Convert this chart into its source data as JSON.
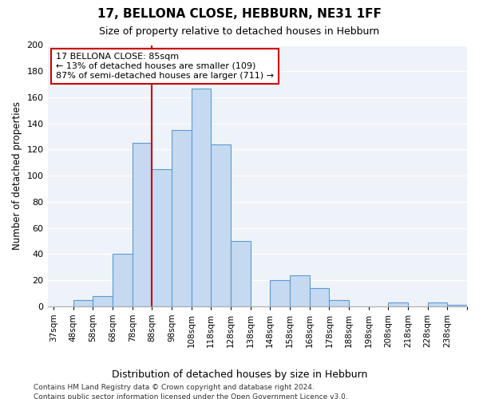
{
  "title": "17, BELLONA CLOSE, HEBBURN, NE31 1FF",
  "subtitle": "Size of property relative to detached houses in Hebburn",
  "xlabel": "Distribution of detached houses by size in Hebburn",
  "ylabel": "Number of detached properties",
  "bin_labels": [
    "37sqm",
    "48sqm",
    "58sqm",
    "68sqm",
    "78sqm",
    "88sqm",
    "98sqm",
    "108sqm",
    "118sqm",
    "128sqm",
    "138sqm",
    "148sqm",
    "158sqm",
    "168sqm",
    "178sqm",
    "188sqm",
    "198sqm",
    "208sqm",
    "218sqm",
    "228sqm",
    "238sqm"
  ],
  "bar_heights": [
    0,
    5,
    8,
    40,
    125,
    105,
    135,
    167,
    124,
    50,
    0,
    20,
    24,
    14,
    5,
    0,
    0,
    3,
    0,
    3,
    1
  ],
  "bar_color": "#c5d9f0",
  "bar_edge_color": "#5b9bd5",
  "vline_x": 5,
  "vline_color": "#cc0000",
  "annotation_title": "17 BELLONA CLOSE: 85sqm",
  "annotation_line1": "← 13% of detached houses are smaller (109)",
  "annotation_line2": "87% of semi-detached houses are larger (711) →",
  "annotation_box_color": "white",
  "annotation_box_edge": "#cc0000",
  "ylim": [
    0,
    200
  ],
  "yticks": [
    0,
    20,
    40,
    60,
    80,
    100,
    120,
    140,
    160,
    180,
    200
  ],
  "footnote1": "Contains HM Land Registry data © Crown copyright and database right 2024.",
  "footnote2": "Contains public sector information licensed under the Open Government Licence v3.0.",
  "bg_color": "#eef3f9"
}
